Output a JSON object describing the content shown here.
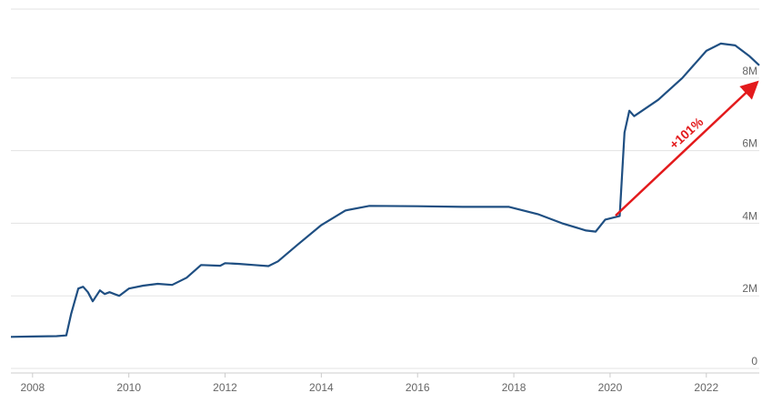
{
  "chart_data": {
    "type": "line",
    "annotation": "+101%",
    "x": [
      2007.55,
      2008.0,
      2008.5,
      2008.7,
      2008.8,
      2008.95,
      2009.05,
      2009.15,
      2009.25,
      2009.4,
      2009.5,
      2009.6,
      2009.8,
      2010.0,
      2010.3,
      2010.6,
      2010.9,
      2011.2,
      2011.5,
      2011.9,
      2012.0,
      2012.3,
      2012.6,
      2012.9,
      2013.1,
      2013.5,
      2014.0,
      2014.5,
      2015.0,
      2016.0,
      2017.0,
      2017.9,
      2018.5,
      2019.0,
      2019.5,
      2019.7,
      2019.9,
      2020.2,
      2020.3,
      2020.4,
      2020.5,
      2021.0,
      2021.5,
      2022.0,
      2022.3,
      2022.6,
      2022.9,
      2023.1
    ],
    "series": [
      {
        "color": "#1f4f82",
        "values": [
          870000,
          880000,
          890000,
          910000,
          1500000,
          2200000,
          2250000,
          2100000,
          1850000,
          2150000,
          2050000,
          2100000,
          2000000,
          2200000,
          2280000,
          2330000,
          2300000,
          2500000,
          2850000,
          2830000,
          2900000,
          2880000,
          2850000,
          2820000,
          2950000,
          3400000,
          3950000,
          4350000,
          4480000,
          4470000,
          4450000,
          4450000,
          4250000,
          4000000,
          3800000,
          3770000,
          4100000,
          4200000,
          6500000,
          7100000,
          6950000,
          7400000,
          8000000,
          8750000,
          8950000,
          8900000,
          8600000,
          8350000
        ]
      }
    ],
    "xlim": [
      2007.55,
      2023.1
    ],
    "xticks": [
      2008,
      2010,
      2012,
      2014,
      2016,
      2018,
      2020,
      2022
    ],
    "ylim": [
      0,
      9900000
    ],
    "yticks": [
      0,
      {
        "value": 2000000,
        "label": "2M"
      },
      {
        "value": 4000000,
        "label": "4M"
      },
      {
        "value": 6000000,
        "label": "6M"
      },
      {
        "value": 8000000,
        "label": "8M"
      }
    ],
    "grid": true
  }
}
